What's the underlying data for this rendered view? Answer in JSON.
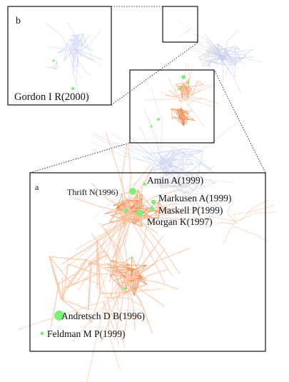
{
  "panels": {
    "b": {
      "letter": "b"
    },
    "a": {
      "letter": "a"
    }
  },
  "labels": {
    "gordon": "Gordon I R(2000)",
    "amin": "Amin A(1999)",
    "thrift": "Thrift N(1996)",
    "markusen": "Markusen A(1999)",
    "maskell": "Maskell P(1999)",
    "morgan": "Morgan K(1997)",
    "andretsch": "Andretsch D B(1996)",
    "feldman": "Feldman M P(1999)"
  },
  "colors": {
    "frame": "#111111",
    "connector": "#333333",
    "node": "#7df07a",
    "edge_orange": "#f28a4e",
    "edge_orange_light": "#f9c6a6",
    "edge_blue": "#9fb0e6",
    "edge_blue_light": "#cdd6f2",
    "edge_gray": "#d4d4d8"
  }
}
